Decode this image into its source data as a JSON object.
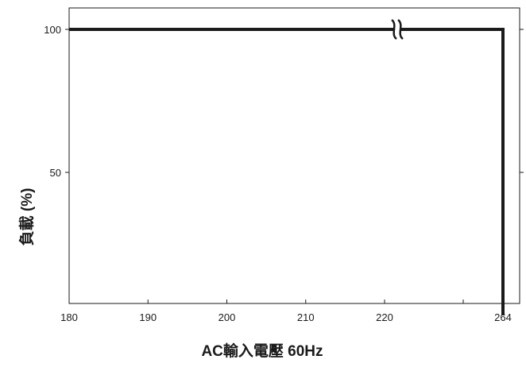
{
  "chart_data": {
    "type": "line",
    "title": "",
    "xlabel": "AC輸入電壓 60Hz",
    "ylabel": "負載 (%)",
    "x_axis_break_between": [
      220,
      264
    ],
    "x_ticks": [
      180,
      190,
      200,
      210,
      220,
      264
    ],
    "y_ticks": [
      50,
      100
    ],
    "xlim": [
      180,
      264
    ],
    "ylim": [
      0,
      105
    ],
    "grid": false,
    "legend": "none",
    "line_color": "#1a1a1a",
    "series": [
      {
        "x": [
          180,
          264,
          264
        ],
        "y": [
          100,
          100,
          0
        ]
      }
    ]
  }
}
